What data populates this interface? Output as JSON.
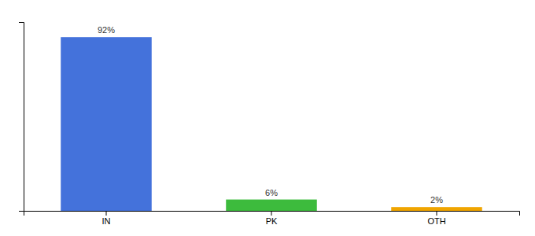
{
  "chart_data": {
    "type": "bar",
    "categories": [
      "IN",
      "PK",
      "OTH"
    ],
    "values": [
      92,
      6,
      2
    ],
    "value_labels": [
      "92%",
      "6%",
      "2%"
    ],
    "colors": [
      "#4472db",
      "#3dbb3d",
      "#f0a500"
    ],
    "ylim": [
      0,
      100
    ],
    "yticks": [],
    "data_labels": true,
    "tick_labels": "x",
    "grid": false
  }
}
